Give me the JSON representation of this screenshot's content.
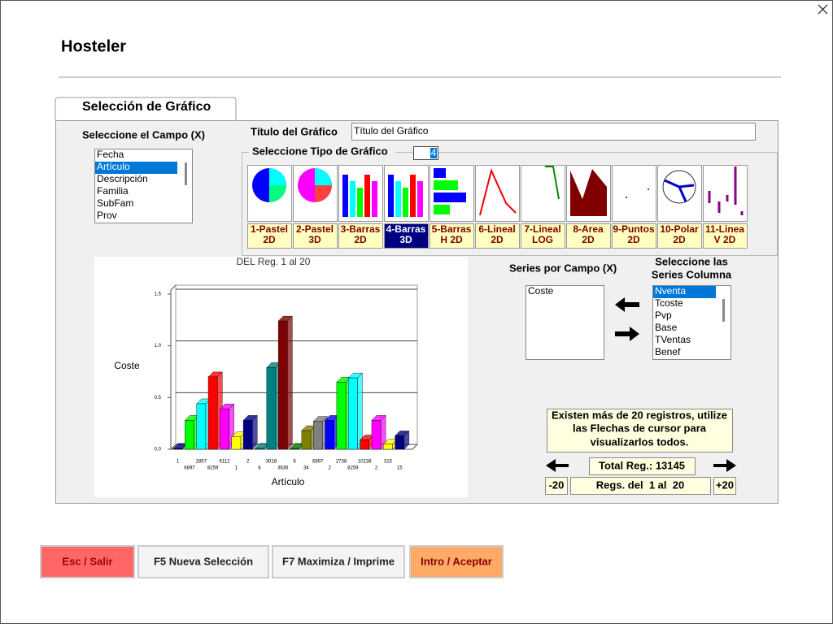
{
  "window": {
    "title": "Hosteler"
  },
  "tab": "Selección de Gráfico",
  "field": {
    "label": "Seleccione el Campo (X)",
    "items": [
      "Fecha",
      "Artículo",
      "Descripción",
      "Familia",
      "SubFam",
      "Prov"
    ],
    "selected": 1
  },
  "chart_title": {
    "label": "Título del Gráfico",
    "value": "Título del Gráfico"
  },
  "chart_type": {
    "label": "Seleccione Tipo de Gráfico",
    "spin": "4",
    "selected": 3,
    "options": [
      [
        "1-Pastel",
        "2D"
      ],
      [
        "2-Pastel",
        "3D"
      ],
      [
        "3-Barras",
        "2D"
      ],
      [
        "4-Barras",
        "3D"
      ],
      [
        "5-Barras",
        "H 2D"
      ],
      [
        "6-Lineal",
        "2D"
      ],
      [
        "7-Lineal",
        "LOG"
      ],
      [
        "8-Area",
        "2D"
      ],
      [
        "9-Puntos",
        "2D"
      ],
      [
        "10-Polar",
        "2D"
      ],
      [
        "11-Linea",
        "V 2D"
      ]
    ]
  },
  "chart_data": {
    "type": "bar3d",
    "title": "DEL Reg. 1 al 20",
    "y_label": "Coste",
    "x_label": "Artículo",
    "categories": [
      "1",
      "6897",
      "2857",
      "8259",
      "6112",
      "1",
      "2",
      "6",
      "3018",
      "3636",
      "6",
      "34",
      "6897",
      "2",
      "2738",
      "8259",
      "10238",
      "2",
      "315",
      "15"
    ],
    "values": [
      0.01,
      0.28,
      0.44,
      0.7,
      0.39,
      0.12,
      0.28,
      0.01,
      0.79,
      1.24,
      0.01,
      0.18,
      0.27,
      0.28,
      0.65,
      0.69,
      0.09,
      0.28,
      0.05,
      0.13
    ],
    "colors": [
      "#000080",
      "#00ff00",
      "#00ffff",
      "#ff0000",
      "#ff00ff",
      "#ffff00",
      "#000080",
      "#008080",
      "#008080",
      "#800000",
      "#008000",
      "#808000",
      "#808080",
      "#0000ff",
      "#00ff00",
      "#00ffff",
      "#ff0000",
      "#ff00ff",
      "#ffff00",
      "#000080"
    ],
    "ylim": [
      0,
      1.5
    ],
    "yticks": [
      {
        "value": 0,
        "label": "0.0"
      },
      {
        "value": 0.5,
        "label": "0.5"
      },
      {
        "value": 1,
        "label": "1.0"
      },
      {
        "value": 1.5,
        "label": "1.5"
      }
    ],
    "grid": true
  },
  "series_field": {
    "label": "Series por Campo (X)",
    "items": [
      "Coste"
    ]
  },
  "series_columns": {
    "label": [
      "Seleccione las",
      "Series Columna"
    ],
    "items": [
      "Nventa",
      "Tcoste",
      "Pvp",
      "Base",
      "TVentas",
      "Benef"
    ],
    "selected": 0
  },
  "info": [
    "Existen más de 20 registros, utilize",
    "las Flechas de cursor para",
    "visualizarlos todos."
  ],
  "total": "Total Reg.: 13145",
  "nav": {
    "prev": "-20",
    "range": "Regs. del  1 al  20",
    "next": "+20"
  },
  "buttons": [
    "Esc / Salir",
    "F5 Nueva Selección",
    "F7 Maximiza / Imprime",
    "Intro / Aceptar"
  ]
}
